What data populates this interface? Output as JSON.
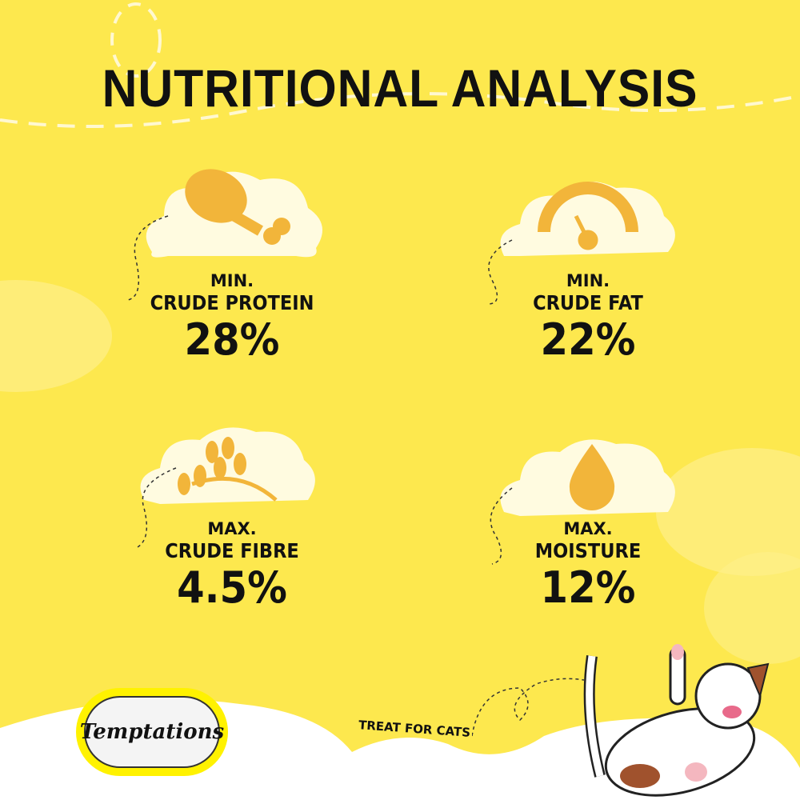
{
  "title": "NUTRITIONAL ANALYSIS",
  "colors": {
    "background": "#fde84e",
    "icon": "#f2b53a",
    "cloud": "#fffbe0",
    "text": "#111111"
  },
  "nutrients": [
    {
      "icon": "chicken-drumstick-icon",
      "qualifier": "MIN.",
      "name": "CRUDE PROTEIN",
      "value": "28%"
    },
    {
      "icon": "gauge-icon",
      "qualifier": "MIN.",
      "name": "CRUDE FAT",
      "value": "22%"
    },
    {
      "icon": "wheat-icon",
      "qualifier": "MAX.",
      "name": "CRUDE FIBRE",
      "value": "4.5%"
    },
    {
      "icon": "water-drop-icon",
      "qualifier": "MAX.",
      "name": "MOISTURE",
      "value": "12%"
    }
  ],
  "footer": {
    "brand": "Temptations",
    "tagline": "TREAT FOR CATS"
  }
}
